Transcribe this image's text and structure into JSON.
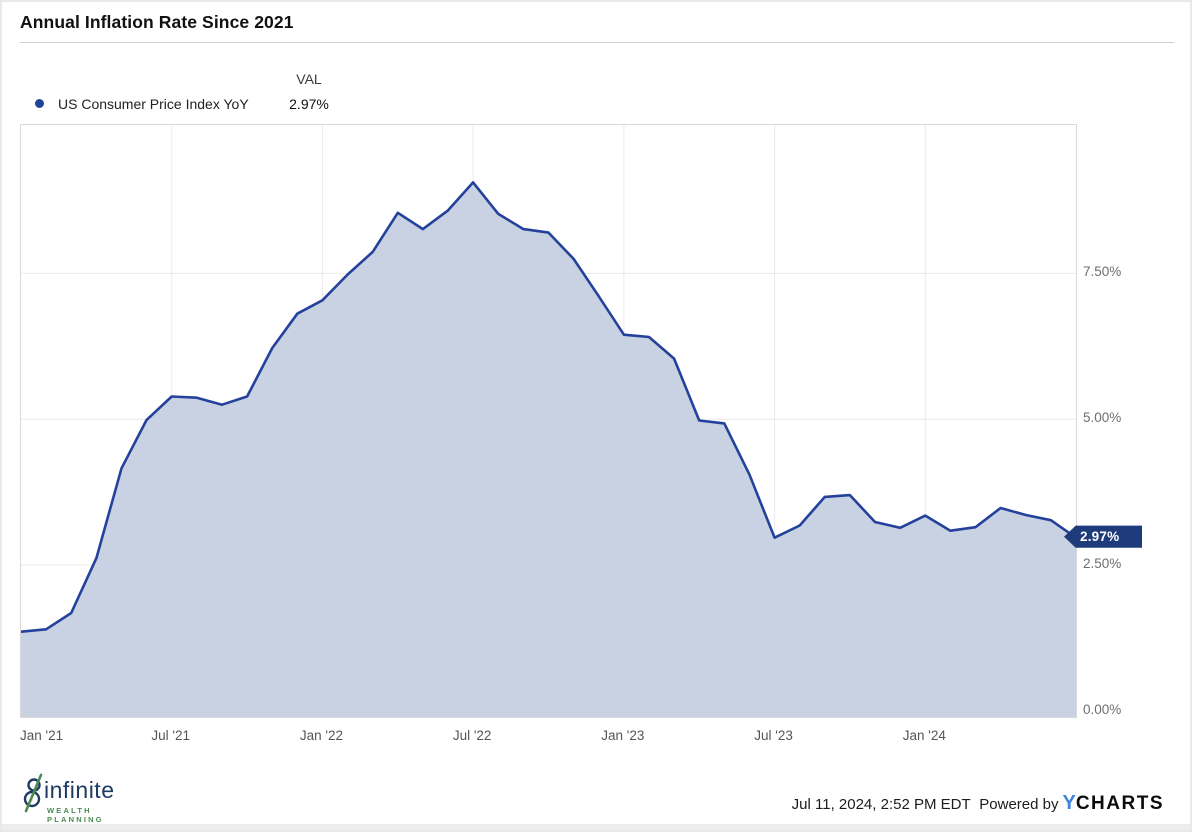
{
  "header": {
    "title": "Annual Inflation Rate Since 2021"
  },
  "legend": {
    "val_header": "VAL",
    "series": [
      {
        "label": "US Consumer Price Index YoY",
        "value": "2.97%"
      }
    ]
  },
  "chart_data": {
    "type": "area",
    "title": "Annual Inflation Rate Since 2021",
    "series_name": "US Consumer Price Index YoY",
    "unit": "percent",
    "x": [
      "2020-12",
      "2021-01",
      "2021-02",
      "2021-03",
      "2021-04",
      "2021-05",
      "2021-06",
      "2021-07",
      "2021-08",
      "2021-09",
      "2021-10",
      "2021-11",
      "2021-12",
      "2022-01",
      "2022-02",
      "2022-03",
      "2022-04",
      "2022-05",
      "2022-06",
      "2022-07",
      "2022-08",
      "2022-09",
      "2022-10",
      "2022-11",
      "2022-12",
      "2023-01",
      "2023-02",
      "2023-03",
      "2023-04",
      "2023-05",
      "2023-06",
      "2023-07",
      "2023-08",
      "2023-09",
      "2023-10",
      "2023-11",
      "2023-12",
      "2024-01",
      "2024-02",
      "2024-03",
      "2024-04",
      "2024-05",
      "2024-06"
    ],
    "values": [
      1.36,
      1.4,
      1.68,
      2.62,
      4.16,
      4.99,
      5.39,
      5.37,
      5.25,
      5.39,
      6.22,
      6.81,
      7.04,
      7.48,
      7.87,
      8.54,
      8.26,
      8.58,
      9.06,
      8.52,
      8.26,
      8.2,
      7.75,
      7.11,
      6.45,
      6.41,
      6.04,
      4.98,
      4.93,
      4.05,
      2.97,
      3.18,
      3.67,
      3.7,
      3.24,
      3.14,
      3.35,
      3.09,
      3.15,
      3.48,
      3.36,
      3.27,
      2.97
    ],
    "x_tick_labels": [
      "Jan '21",
      "Jul '21",
      "Jan '22",
      "Jul '22",
      "Jan '23",
      "Jul '23",
      "Jan '24"
    ],
    "x_tick_indices": [
      0,
      6,
      12,
      18,
      24,
      30,
      36
    ],
    "y_ticks": [
      0,
      2.5,
      5,
      7.5
    ],
    "y_tick_labels": [
      "0.00%",
      "2.50%",
      "5.00%",
      "7.50%"
    ],
    "ylim": [
      0,
      10.1
    ],
    "grid": true,
    "legend_position": "top-left",
    "y_axis_side": "right",
    "last_value_label": "2.97%",
    "colors": {
      "line": "#24419b",
      "fill": "#c9d2e3",
      "badge_bg": "#1e3c7c",
      "legend_dot": "#1d4499",
      "grid": "#eaeaea",
      "axis_text": "#6e6e6e"
    }
  },
  "footer": {
    "brand": {
      "name": "infinite",
      "subtitle": "WEALTH PLANNING",
      "navy": "#1d3b63",
      "green": "#4c8a51"
    },
    "timestamp": "Jul 11, 2024, 2:52 PM EDT",
    "powered_by": "Powered by",
    "ycharts_y": "Y",
    "ycharts_rest": "CHARTS",
    "ycharts_blue": "#3d85e0"
  }
}
